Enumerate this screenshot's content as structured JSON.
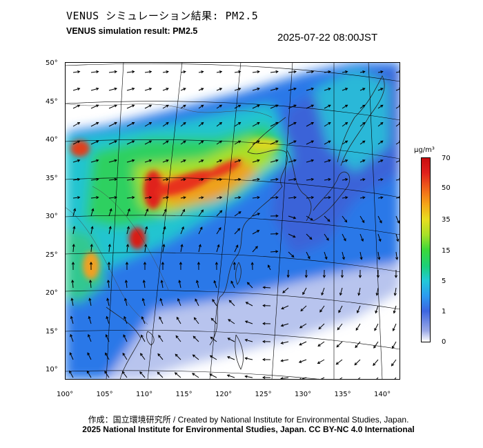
{
  "header": {
    "title_jp": "VENUS シミュレーション結果: PM2.5",
    "title_en": "VENUS simulation result: PM2.5",
    "timestamp": "2025-07-22 08:00JST"
  },
  "map": {
    "lat_labels": [
      "50°",
      "45°",
      "40°",
      "35°",
      "30°",
      "25°",
      "20°",
      "15°",
      "10°"
    ],
    "lon_labels": [
      "100°",
      "105°",
      "110°",
      "115°",
      "120°",
      "125°",
      "130°",
      "135°",
      "140°"
    ],
    "lat_values": [
      50,
      45,
      40,
      35,
      30,
      25,
      20,
      15,
      10
    ],
    "lon_values": [
      100,
      105,
      110,
      115,
      120,
      125,
      130,
      135,
      140
    ]
  },
  "colorbar": {
    "unit": "μg/m³",
    "labels": [
      "70",
      "50",
      "35",
      "15",
      "5",
      "1",
      "0"
    ],
    "colors": {
      "max": "#c80e10",
      "high": "#f0641a",
      "mid_high": "#e8dd20",
      "mid": "#3cd83a",
      "low_mid": "#22c9d8",
      "low": "#3d66e0",
      "min": "#ffffff"
    }
  },
  "footer": {
    "credit": "作成：国立環境研究所 / Created by National Institute for Environmental Studies, Japan.",
    "copyright": "2025 National Institute for Environmental Studies, Japan. CC BY-NC 4.0 International"
  }
}
